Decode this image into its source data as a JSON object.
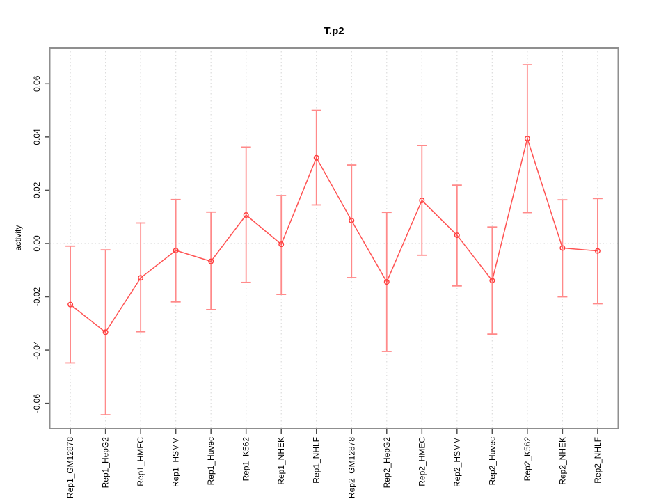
{
  "chart_data": {
    "type": "line",
    "title": "T.p2",
    "xlabel": "",
    "ylabel": "activity",
    "legend": "none",
    "grid": "vertical dotted gridline at each category; dotted horizontal reference line at y=0",
    "categories": [
      "Rep1_GM12878",
      "Rep1_HepG2",
      "Rep1_HMEC",
      "Rep1_HSMM",
      "Rep1_Huvec",
      "Rep1_K562",
      "Rep1_NHEK",
      "Rep1_NHLF",
      "Rep2_GM12878",
      "Rep2_HepG2",
      "Rep2_HMEC",
      "Rep2_HSMM",
      "Rep2_Huvec",
      "Rep2_K562",
      "Rep2_NHEK",
      "Rep2_NHLF"
    ],
    "series": [
      {
        "name": "activity",
        "marker": "open-circle",
        "values": [
          -0.0229,
          -0.0333,
          -0.0129,
          -0.0026,
          -0.0067,
          0.0107,
          -0.0003,
          0.0322,
          0.0086,
          -0.0144,
          0.0162,
          0.0031,
          -0.0139,
          0.0394,
          -0.0017,
          -0.0028
        ],
        "ci_low": [
          -0.0448,
          -0.0643,
          -0.0331,
          -0.0219,
          -0.0248,
          -0.0146,
          -0.0191,
          0.0145,
          -0.0128,
          -0.0405,
          -0.0044,
          -0.0159,
          -0.034,
          0.0116,
          -0.02,
          -0.0226
        ],
        "ci_high": [
          -0.001,
          -0.0024,
          0.0077,
          0.0165,
          0.0118,
          0.0362,
          0.018,
          0.05,
          0.0295,
          0.0117,
          0.0368,
          0.0219,
          0.0062,
          0.0671,
          0.0164,
          0.0169
        ]
      }
    ],
    "ytick_values": [
      -0.06,
      -0.04,
      -0.02,
      0.0,
      0.02,
      0.04,
      0.06
    ],
    "ytick_labels": [
      "-0.06",
      "-0.04",
      "-0.02",
      "0.00",
      "0.02",
      "0.04",
      "0.06"
    ],
    "ylim": [
      -0.0695,
      0.0734
    ],
    "colors": {
      "series_line": "#ff5252",
      "marker": "#ff3b3b",
      "error_bar": "#ff8a8a",
      "gridline": "#dcdcdc",
      "zero_line": "#dcdcdc",
      "frame": "#8f8f8f",
      "tick": "#4d4d4d",
      "text": "#000000",
      "background": "#ffffff"
    }
  }
}
